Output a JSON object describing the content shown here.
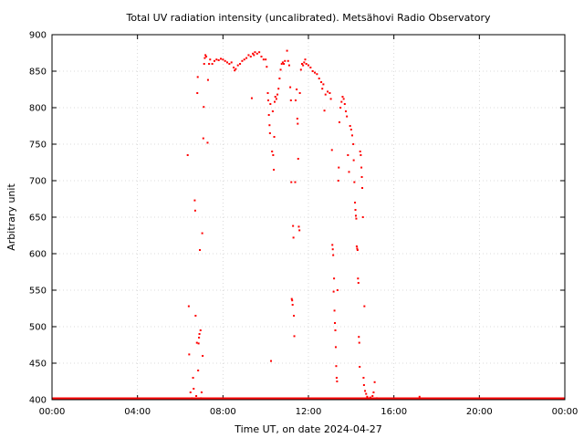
{
  "chart_data": {
    "type": "scatter",
    "title": "Total UV radiation intensity (uncalibrated). Metsähovi Radio Observatory",
    "xlabel": "Time UT, on date 2024-04-27",
    "ylabel": "Arbitrary unit",
    "xlim": [
      0,
      24
    ],
    "ylim": [
      400,
      900
    ],
    "x_tick_labels": [
      "00:00",
      "04:00",
      "08:00",
      "12:00",
      "16:00",
      "20:00",
      "00:00"
    ],
    "y_tick_labels": [
      "400",
      "450",
      "500",
      "550",
      "600",
      "650",
      "700",
      "750",
      "800",
      "850",
      "900"
    ],
    "grid": true,
    "legend": "none",
    "marker_color": "#ff0000",
    "baseline_value": 400,
    "series": [
      {
        "x_unit": "hours UT",
        "points": [
          [
            6.35,
            735
          ],
          [
            6.4,
            528
          ],
          [
            6.42,
            462
          ],
          [
            6.48,
            410
          ],
          [
            6.55,
            402
          ],
          [
            6.6,
            430
          ],
          [
            6.63,
            415
          ],
          [
            6.68,
            673
          ],
          [
            6.7,
            659
          ],
          [
            6.72,
            515
          ],
          [
            6.75,
            405
          ],
          [
            6.78,
            478
          ],
          [
            6.8,
            820
          ],
          [
            6.82,
            842
          ],
          [
            6.84,
            440
          ],
          [
            6.86,
            477
          ],
          [
            6.88,
            485
          ],
          [
            6.9,
            490
          ],
          [
            6.92,
            605
          ],
          [
            6.95,
            495
          ],
          [
            6.97,
            402
          ],
          [
            7.0,
            410
          ],
          [
            7.03,
            628
          ],
          [
            7.05,
            460
          ],
          [
            7.08,
            758
          ],
          [
            7.1,
            801
          ],
          [
            7.12,
            860
          ],
          [
            7.15,
            868
          ],
          [
            7.18,
            872
          ],
          [
            7.22,
            870
          ],
          [
            7.28,
            752
          ],
          [
            7.3,
            838
          ],
          [
            7.35,
            860
          ],
          [
            7.4,
            866
          ],
          [
            7.5,
            860
          ],
          [
            7.6,
            864
          ],
          [
            7.7,
            866
          ],
          [
            7.8,
            865
          ],
          [
            7.9,
            867
          ],
          [
            8.0,
            866
          ],
          [
            8.1,
            864
          ],
          [
            8.2,
            862
          ],
          [
            8.3,
            860
          ],
          [
            8.4,
            862
          ],
          [
            8.5,
            855
          ],
          [
            8.55,
            851
          ],
          [
            8.6,
            853
          ],
          [
            8.7,
            858
          ],
          [
            8.8,
            860
          ],
          [
            8.9,
            864
          ],
          [
            9.0,
            866
          ],
          [
            9.1,
            868
          ],
          [
            9.2,
            872
          ],
          [
            9.3,
            870
          ],
          [
            9.35,
            813
          ],
          [
            9.4,
            874
          ],
          [
            9.45,
            872
          ],
          [
            9.5,
            876
          ],
          [
            9.6,
            874
          ],
          [
            9.7,
            876
          ],
          [
            9.8,
            870
          ],
          [
            9.9,
            866
          ],
          [
            10.0,
            866
          ],
          [
            10.05,
            856
          ],
          [
            10.1,
            820
          ],
          [
            10.12,
            810
          ],
          [
            10.15,
            790
          ],
          [
            10.18,
            776
          ],
          [
            10.2,
            765
          ],
          [
            10.22,
            805
          ],
          [
            10.25,
            453
          ],
          [
            10.3,
            740
          ],
          [
            10.33,
            795
          ],
          [
            10.35,
            735
          ],
          [
            10.38,
            715
          ],
          [
            10.4,
            760
          ],
          [
            10.42,
            808
          ],
          [
            10.45,
            815
          ],
          [
            10.5,
            812
          ],
          [
            10.55,
            818
          ],
          [
            10.6,
            826
          ],
          [
            10.65,
            840
          ],
          [
            10.7,
            852
          ],
          [
            10.75,
            860
          ],
          [
            10.8,
            862
          ],
          [
            10.85,
            860
          ],
          [
            10.9,
            864
          ],
          [
            11.0,
            878
          ],
          [
            11.05,
            864
          ],
          [
            11.1,
            858
          ],
          [
            11.15,
            828
          ],
          [
            11.18,
            810
          ],
          [
            11.2,
            698
          ],
          [
            11.22,
            538
          ],
          [
            11.24,
            536
          ],
          [
            11.26,
            530
          ],
          [
            11.28,
            638
          ],
          [
            11.3,
            622
          ],
          [
            11.32,
            515
          ],
          [
            11.34,
            487
          ],
          [
            11.38,
            698
          ],
          [
            11.4,
            810
          ],
          [
            11.45,
            825
          ],
          [
            11.48,
            785
          ],
          [
            11.5,
            778
          ],
          [
            11.52,
            730
          ],
          [
            11.55,
            637
          ],
          [
            11.58,
            632
          ],
          [
            11.6,
            820
          ],
          [
            11.65,
            852
          ],
          [
            11.7,
            860
          ],
          [
            11.75,
            858
          ],
          [
            11.8,
            862
          ],
          [
            11.85,
            866
          ],
          [
            11.9,
            860
          ],
          [
            12.0,
            858
          ],
          [
            12.1,
            855
          ],
          [
            12.2,
            850
          ],
          [
            12.3,
            848
          ],
          [
            12.4,
            846
          ],
          [
            12.5,
            840
          ],
          [
            12.6,
            835
          ],
          [
            12.65,
            826
          ],
          [
            12.7,
            832
          ],
          [
            12.75,
            796
          ],
          [
            12.8,
            818
          ],
          [
            12.9,
            822
          ],
          [
            13.0,
            820
          ],
          [
            13.05,
            812
          ],
          [
            13.1,
            742
          ],
          [
            13.12,
            612
          ],
          [
            13.14,
            606
          ],
          [
            13.16,
            598
          ],
          [
            13.18,
            548
          ],
          [
            13.2,
            566
          ],
          [
            13.22,
            522
          ],
          [
            13.24,
            505
          ],
          [
            13.26,
            495
          ],
          [
            13.28,
            472
          ],
          [
            13.3,
            446
          ],
          [
            13.32,
            430
          ],
          [
            13.34,
            425
          ],
          [
            13.36,
            550
          ],
          [
            13.4,
            700
          ],
          [
            13.42,
            718
          ],
          [
            13.45,
            780
          ],
          [
            13.5,
            800
          ],
          [
            13.55,
            808
          ],
          [
            13.6,
            815
          ],
          [
            13.65,
            812
          ],
          [
            13.7,
            805
          ],
          [
            13.75,
            795
          ],
          [
            13.8,
            788
          ],
          [
            13.85,
            735
          ],
          [
            13.9,
            712
          ],
          [
            13.95,
            775
          ],
          [
            14.0,
            770
          ],
          [
            14.05,
            762
          ],
          [
            14.1,
            750
          ],
          [
            14.12,
            728
          ],
          [
            14.15,
            698
          ],
          [
            14.18,
            670
          ],
          [
            14.2,
            660
          ],
          [
            14.22,
            652
          ],
          [
            14.24,
            648
          ],
          [
            14.26,
            610
          ],
          [
            14.28,
            607
          ],
          [
            14.3,
            605
          ],
          [
            14.32,
            566
          ],
          [
            14.34,
            560
          ],
          [
            14.36,
            486
          ],
          [
            14.38,
            478
          ],
          [
            14.4,
            445
          ],
          [
            14.42,
            740
          ],
          [
            14.45,
            735
          ],
          [
            14.48,
            718
          ],
          [
            14.5,
            705
          ],
          [
            14.52,
            690
          ],
          [
            14.55,
            650
          ],
          [
            14.58,
            430
          ],
          [
            14.6,
            420
          ],
          [
            14.62,
            528
          ],
          [
            14.65,
            412
          ],
          [
            14.7,
            408
          ],
          [
            14.75,
            404
          ],
          [
            14.8,
            402
          ],
          [
            14.9,
            403
          ],
          [
            15.0,
            405
          ],
          [
            15.05,
            410
          ],
          [
            15.1,
            424
          ],
          [
            15.2,
            402
          ],
          [
            17.2,
            404
          ]
        ]
      }
    ]
  }
}
